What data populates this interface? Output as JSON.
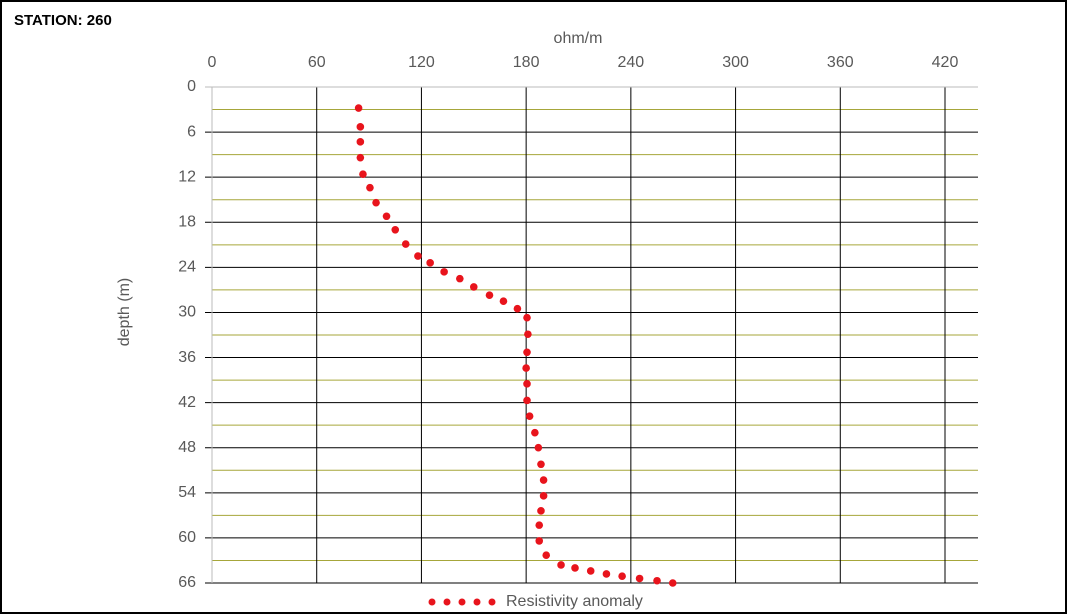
{
  "chart_data": {
    "type": "scatter",
    "title": "STATION: 260",
    "x_label": "ohm/m",
    "y_label": "depth (m)",
    "series": [
      {
        "name": "Resistivity anomaly",
        "color": "#e8141c",
        "x": [
          84,
          85,
          85,
          85,
          86.5,
          90.5,
          94,
          100,
          105,
          111,
          118,
          125,
          133,
          142,
          150,
          159,
          167,
          175,
          180.5,
          181,
          180.5,
          180,
          180.5,
          180.5,
          182,
          185,
          187,
          188.5,
          190,
          190,
          188.5,
          187.5,
          187.5,
          191.5,
          200,
          208,
          217,
          226,
          235,
          245,
          255,
          264
        ],
        "values": [
          2.8,
          5.3,
          7.3,
          9.4,
          11.6,
          13.4,
          15.4,
          17.2,
          19,
          20.9,
          22.5,
          23.4,
          24.6,
          25.5,
          26.6,
          27.7,
          28.5,
          29.5,
          30.7,
          32.9,
          35.3,
          37.4,
          39.5,
          41.7,
          43.8,
          46,
          48,
          50.2,
          52.3,
          54.4,
          56.4,
          58.3,
          60.4,
          62.3,
          63.6,
          64,
          64.4,
          64.8,
          65.1,
          65.4,
          65.7,
          66
        ]
      }
    ],
    "xlim": [
      0,
      420
    ],
    "xticks": [
      0,
      60,
      120,
      180,
      240,
      300,
      360,
      420
    ],
    "ylim": [
      0,
      66
    ],
    "yticks": [
      0,
      6,
      12,
      18,
      24,
      30,
      36,
      42,
      48,
      54,
      60,
      66
    ],
    "minor_yticks": [
      3,
      9,
      15,
      21,
      27,
      33,
      39,
      45,
      51,
      57,
      63
    ],
    "y_inverted": true,
    "grid": true,
    "legend": "bottom"
  }
}
